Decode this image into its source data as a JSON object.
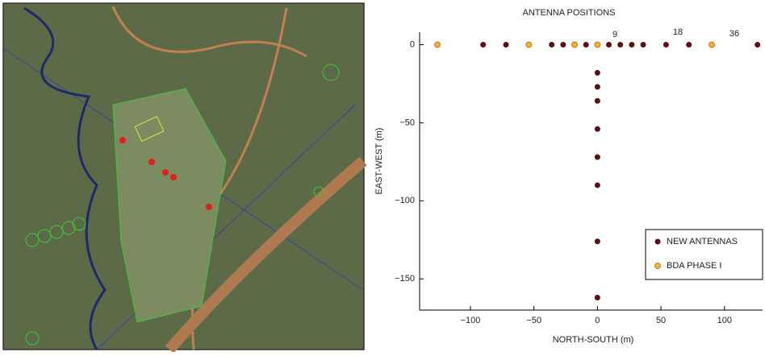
{
  "chart_data": {
    "type": "scatter",
    "title": "ANTENNA POSITIONS",
    "x_label": "NORTH-SOUTH (m)",
    "y_label": "EAST-WEST (m)",
    "xlim": [
      -140,
      130
    ],
    "ylim": [
      -170,
      8
    ],
    "xticks": [
      {
        "value": -100,
        "label": "−100"
      },
      {
        "value": -50,
        "label": "−50"
      },
      0,
      50,
      100
    ],
    "yticks": [
      0,
      {
        "value": -50,
        "label": "−50"
      },
      {
        "value": -100,
        "label": "−100"
      },
      {
        "value": -150,
        "label": "−150"
      }
    ],
    "annotations": [
      "9",
      "18",
      "36"
    ],
    "series": [
      {
        "name": "NEW ANTENNAS",
        "color": "#5a0f14",
        "x": [
          -90,
          -72,
          -54,
          -36,
          -27,
          -9,
          9,
          18,
          27,
          36,
          54,
          72,
          126,
          0,
          0,
          0,
          0,
          0,
          0,
          0,
          0
        ],
        "values": [
          0,
          0,
          0,
          0,
          0,
          0,
          0,
          0,
          0,
          0,
          0,
          0,
          0,
          -18,
          -27,
          -36,
          -54,
          -72,
          -90,
          -126,
          -162
        ]
      },
      {
        "name": "BDA PHASE I",
        "color": "#f5b335",
        "x": [
          -126,
          -54,
          -18,
          0,
          90
        ],
        "values": [
          0,
          0,
          0,
          0,
          0
        ]
      }
    ]
  }
}
